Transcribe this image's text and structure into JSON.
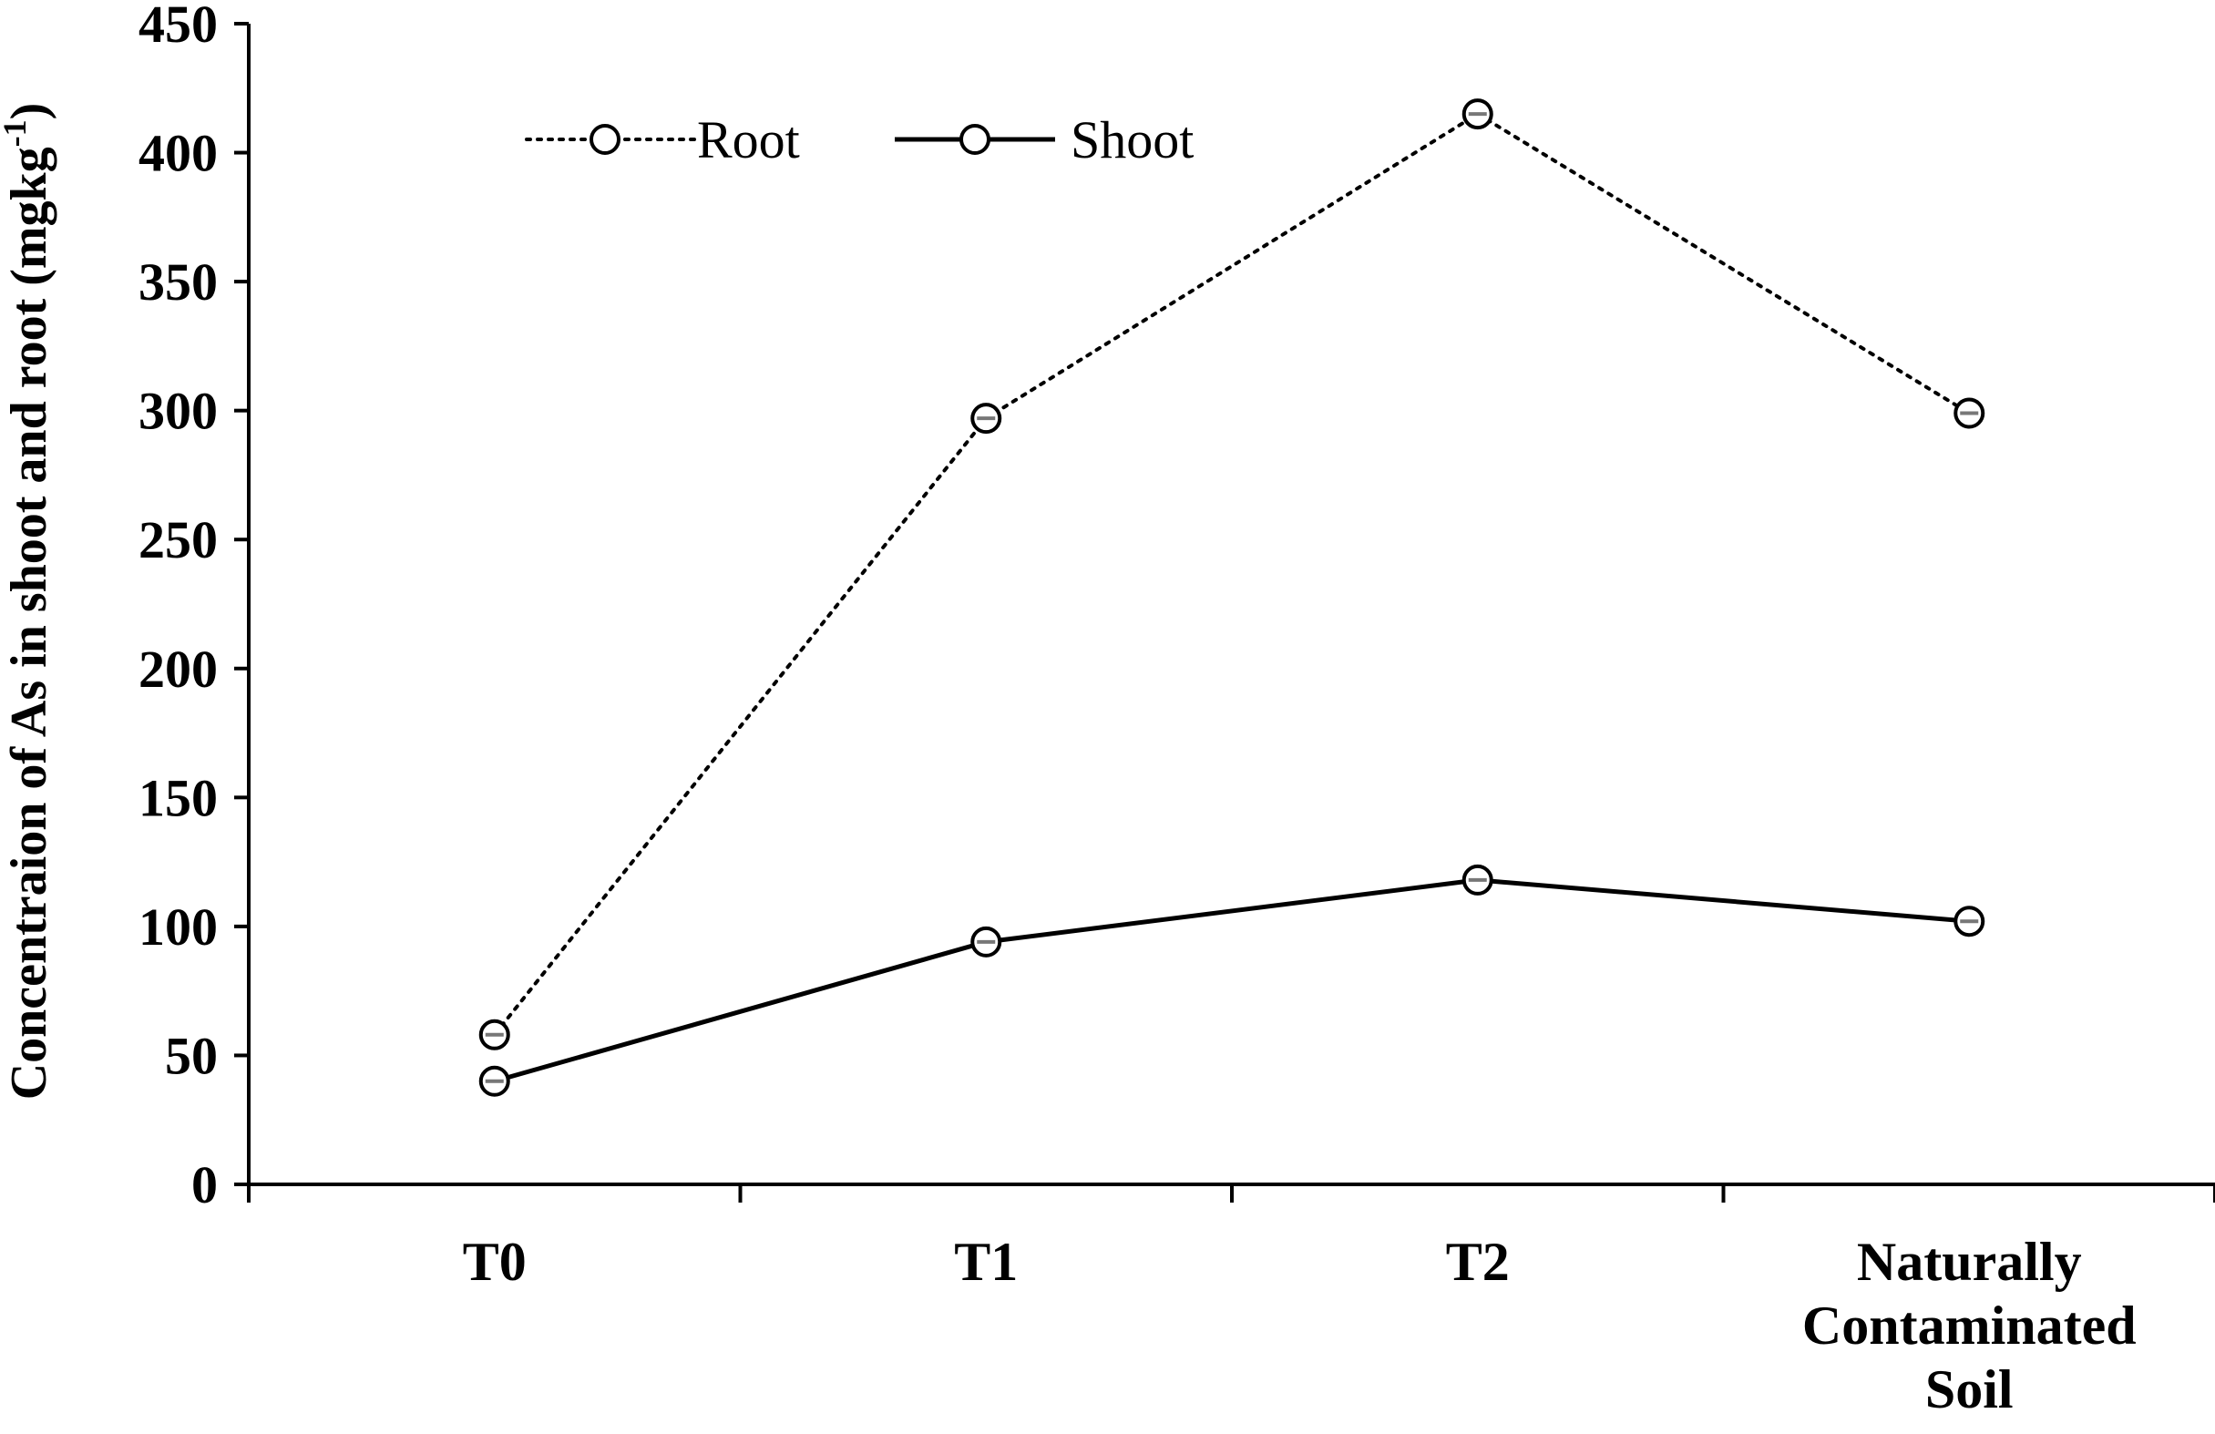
{
  "chart_data": {
    "type": "line",
    "categories": [
      [
        "T0"
      ],
      [
        "T1"
      ],
      [
        "T2"
      ],
      [
        "Naturally",
        "Contaminated",
        "Soil"
      ]
    ],
    "series": [
      {
        "name": "Root",
        "values": [
          58,
          297,
          415,
          299
        ],
        "line_style": "dotted",
        "color": "#000000"
      },
      {
        "name": "Shoot",
        "values": [
          40,
          94,
          118,
          102
        ],
        "line_style": "solid",
        "color": "#000000"
      }
    ],
    "ylabel": "Concentraion of As in shoot and root (mgkg",
    "ylabel_superscript": "-1",
    "ylabel_suffix": ")",
    "ylim": [
      0,
      450
    ],
    "yticks": [
      0,
      50,
      100,
      150,
      200,
      250,
      300,
      350,
      400,
      450
    ],
    "grid": false,
    "legend_position": "top-left"
  }
}
